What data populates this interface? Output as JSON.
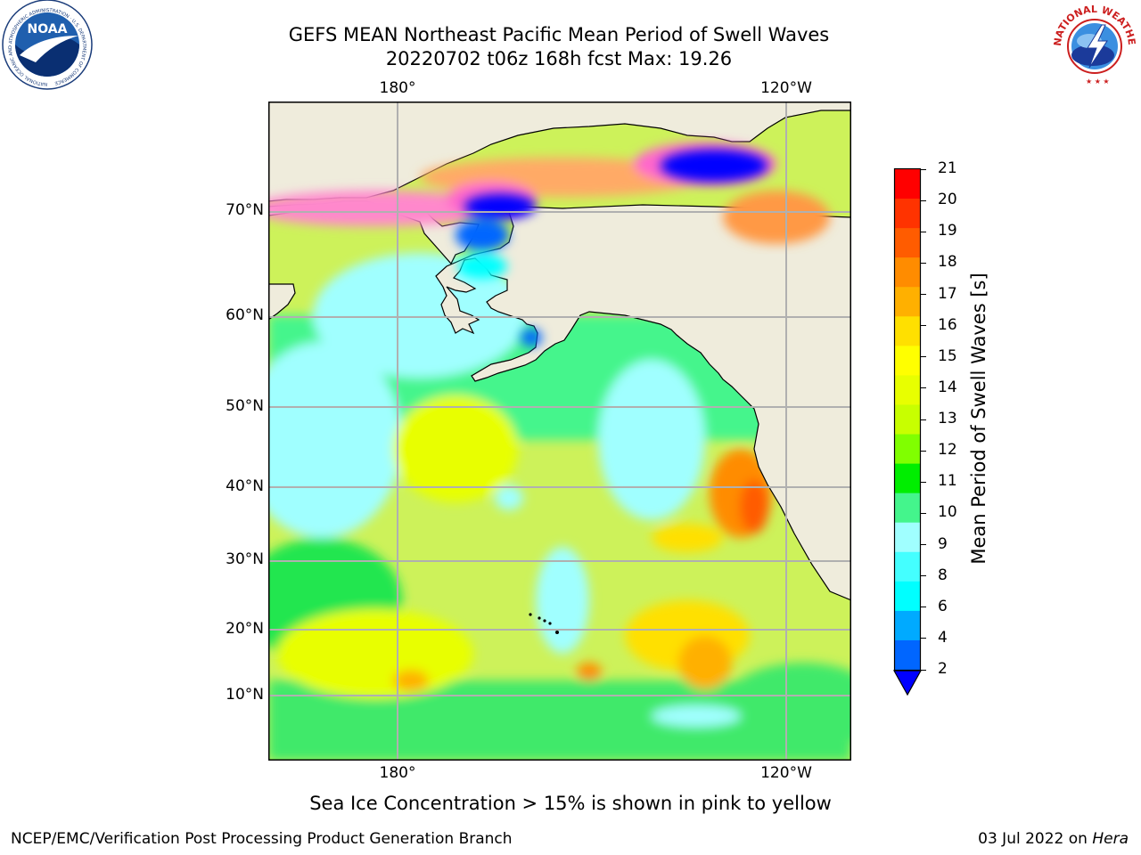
{
  "title": {
    "line1": "GEFS MEAN Northeast Pacific Mean Period of Swell Waves",
    "line2": "20220702 t06z 168h fcst   Max: 19.26"
  },
  "map": {
    "lon_labels_top": [
      "180°",
      "120°W"
    ],
    "lon_labels_bottom": [
      "180°",
      "120°W"
    ],
    "lat_labels": [
      "70°N",
      "60°N",
      "50°N",
      "40°N",
      "30°N",
      "20°N",
      "10°N"
    ],
    "colors": {
      "land": "#efecdc",
      "grid": "#b0b0b0"
    }
  },
  "colorbar": {
    "label": "Mean Period of Swell Waves [s]",
    "ticks": [
      "21",
      "20",
      "19",
      "18",
      "17",
      "16",
      "15",
      "14",
      "13",
      "12",
      "11",
      "10",
      "9",
      "8",
      "6",
      "4",
      "2"
    ],
    "colors": [
      "#ff0000",
      "#ff3300",
      "#ff5c00",
      "#ff8c00",
      "#ffb000",
      "#ffe000",
      "#ffff00",
      "#e8ff00",
      "#c8ff00",
      "#80ff00",
      "#00ee00",
      "#44f58c",
      "#a0ffff",
      "#44ffff",
      "#00ffff",
      "#00aaff",
      "#0066ff"
    ],
    "extend_color": "#0000ff"
  },
  "note": "Sea Ice Concentration > 15% is shown in pink to yellow",
  "footer": {
    "left": "NCEP/EMC/Verification Post Processing Product Generation Branch",
    "right_date": "03 Jul 2022 on ",
    "right_host": "Hera"
  },
  "logos": {
    "noaa": {
      "name": "noaa-logo",
      "text": "NOAA",
      "ring_text": "NATIONAL OCEANIC AND ATMOSPHERIC ADMINISTRATION · U.S. DEPARTMENT OF COMMERCE"
    },
    "nws": {
      "name": "nws-logo",
      "ring_text": "NATIONAL WEATHER SERVICE"
    }
  }
}
